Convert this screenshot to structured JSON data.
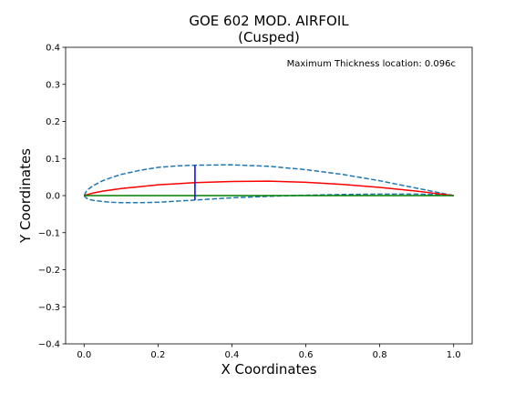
{
  "chart_data": {
    "type": "line",
    "title": "GOE 602 MOD. AIRFOIL",
    "subtitle": "(Cusped)",
    "xlabel": "X Coordinates",
    "ylabel": "Y Coordinates",
    "xlim": [
      -0.05,
      1.05
    ],
    "ylim": [
      -0.4,
      0.4
    ],
    "xticks": [
      0.0,
      0.2,
      0.4,
      0.6,
      0.8,
      1.0
    ],
    "xtick_labels": [
      "0.0",
      "0.2",
      "0.4",
      "0.6",
      "0.8",
      "1.0"
    ],
    "yticks": [
      -0.4,
      -0.3,
      -0.2,
      -0.1,
      0.0,
      0.1,
      0.2,
      0.3,
      0.4
    ],
    "ytick_labels": [
      "−0.4",
      "−0.3",
      "−0.2",
      "−0.1",
      "0.0",
      "0.1",
      "0.2",
      "0.3",
      "0.4"
    ],
    "annotation": "Maximum Thickness location: 0.096c",
    "grid": false,
    "series": [
      {
        "color": "#1f77b4",
        "style": "dashed",
        "x": [
          1.0,
          0.95,
          0.9,
          0.85,
          0.8,
          0.7,
          0.6,
          0.5,
          0.4,
          0.3,
          0.25,
          0.2,
          0.15,
          0.1,
          0.075,
          0.05,
          0.025,
          0.0125,
          0.005,
          0.0
        ],
        "y": [
          0.0,
          0.01,
          0.02,
          0.03,
          0.04,
          0.057,
          0.07,
          0.079,
          0.083,
          0.082,
          0.08,
          0.076,
          0.068,
          0.057,
          0.049,
          0.04,
          0.027,
          0.018,
          0.01,
          0.0
        ]
      },
      {
        "color": "#1f77b4",
        "style": "dashed",
        "x": [
          0.0,
          0.005,
          0.0125,
          0.025,
          0.05,
          0.075,
          0.1,
          0.15,
          0.2,
          0.25,
          0.3,
          0.4,
          0.5,
          0.6,
          0.7,
          0.8,
          0.9,
          0.95,
          1.0
        ],
        "y": [
          0.0,
          -0.006,
          -0.01,
          -0.013,
          -0.016,
          -0.018,
          -0.019,
          -0.019,
          -0.018,
          -0.015,
          -0.012,
          -0.006,
          -0.002,
          0.001,
          0.003,
          0.004,
          0.004,
          0.003,
          0.0
        ]
      },
      {
        "color": "#ff0000",
        "style": "solid",
        "x": [
          0.0,
          0.025,
          0.05,
          0.1,
          0.15,
          0.2,
          0.25,
          0.3,
          0.4,
          0.5,
          0.6,
          0.7,
          0.8,
          0.9,
          0.95,
          1.0
        ],
        "y": [
          0.0,
          0.007,
          0.012,
          0.019,
          0.024,
          0.029,
          0.032,
          0.035,
          0.038,
          0.039,
          0.036,
          0.03,
          0.022,
          0.012,
          0.006,
          0.0
        ]
      },
      {
        "color": "#008000",
        "style": "solid",
        "x": [
          0.0,
          1.0
        ],
        "y": [
          0.0,
          0.0
        ]
      },
      {
        "color": "#0000ff",
        "style": "solid",
        "x": [
          0.3,
          0.3
        ],
        "y": [
          -0.012,
          0.082
        ]
      }
    ]
  }
}
